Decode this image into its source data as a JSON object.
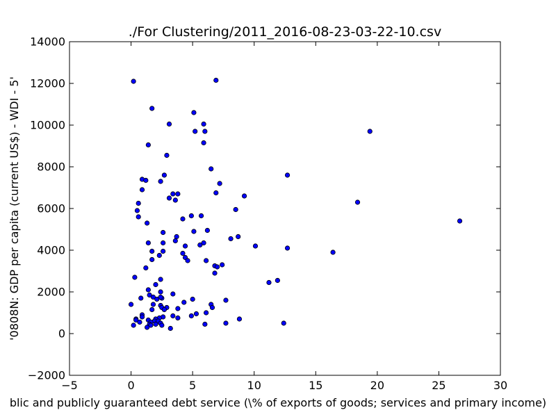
{
  "chart_data": {
    "type": "scatter",
    "title": "./For Clustering/2011_2016-08-23-03-22-10.csv",
    "xlabel": "blic and publicly guaranteed debt service  (\\% of exports of goods; services and primary income)",
    "ylabel": "'0808N: GDP per capita  (current US$) - WDI - 5'",
    "xlim": [
      -5,
      30
    ],
    "ylim": [
      -2000,
      14000
    ],
    "xticks": [
      -5,
      0,
      5,
      10,
      15,
      20,
      25,
      30
    ],
    "yticks": [
      -2000,
      0,
      2000,
      4000,
      6000,
      8000,
      10000,
      12000,
      14000
    ],
    "xtick_labels": [
      "−5",
      "0",
      "5",
      "10",
      "15",
      "20",
      "25",
      "30"
    ],
    "ytick_labels": [
      "−2000",
      "0",
      "2000",
      "4000",
      "6000",
      "8000",
      "10000",
      "12000",
      "14000"
    ],
    "grid": false,
    "marker_color": "#0000ff",
    "marker_edge": "#000000",
    "points": [
      {
        "x": 0.2,
        "y": 12100
      },
      {
        "x": 6.9,
        "y": 12150
      },
      {
        "x": 1.7,
        "y": 10800
      },
      {
        "x": 5.1,
        "y": 10600
      },
      {
        "x": 3.1,
        "y": 10050
      },
      {
        "x": 5.9,
        "y": 10050
      },
      {
        "x": 5.2,
        "y": 9700
      },
      {
        "x": 6.0,
        "y": 9700
      },
      {
        "x": 19.4,
        "y": 9700
      },
      {
        "x": 5.9,
        "y": 9150
      },
      {
        "x": 1.4,
        "y": 9050
      },
      {
        "x": 2.9,
        "y": 8550
      },
      {
        "x": 6.5,
        "y": 7900
      },
      {
        "x": 12.7,
        "y": 7600
      },
      {
        "x": 2.7,
        "y": 7600
      },
      {
        "x": 0.9,
        "y": 7400
      },
      {
        "x": 1.2,
        "y": 7350
      },
      {
        "x": 2.4,
        "y": 7300
      },
      {
        "x": 7.2,
        "y": 7200
      },
      {
        "x": 0.9,
        "y": 6900
      },
      {
        "x": 3.4,
        "y": 6700
      },
      {
        "x": 3.8,
        "y": 6700
      },
      {
        "x": 6.9,
        "y": 6750
      },
      {
        "x": 9.2,
        "y": 6600
      },
      {
        "x": 3.1,
        "y": 6500
      },
      {
        "x": 3.6,
        "y": 6400
      },
      {
        "x": 18.4,
        "y": 6300
      },
      {
        "x": 0.6,
        "y": 6250
      },
      {
        "x": 0.5,
        "y": 5900
      },
      {
        "x": 8.5,
        "y": 5950
      },
      {
        "x": 0.6,
        "y": 5600
      },
      {
        "x": 4.9,
        "y": 5650
      },
      {
        "x": 5.7,
        "y": 5650
      },
      {
        "x": 4.2,
        "y": 5500
      },
      {
        "x": 26.7,
        "y": 5400
      },
      {
        "x": 1.3,
        "y": 5300
      },
      {
        "x": 5.1,
        "y": 4900
      },
      {
        "x": 6.2,
        "y": 4950
      },
      {
        "x": 2.6,
        "y": 4850
      },
      {
        "x": 3.7,
        "y": 4650
      },
      {
        "x": 8.7,
        "y": 4650
      },
      {
        "x": 8.1,
        "y": 4550
      },
      {
        "x": 3.6,
        "y": 4450
      },
      {
        "x": 1.4,
        "y": 4350
      },
      {
        "x": 2.6,
        "y": 4350
      },
      {
        "x": 5.9,
        "y": 4350
      },
      {
        "x": 5.6,
        "y": 4250
      },
      {
        "x": 4.4,
        "y": 4200
      },
      {
        "x": 10.1,
        "y": 4200
      },
      {
        "x": 12.7,
        "y": 4100
      },
      {
        "x": 1.7,
        "y": 3950
      },
      {
        "x": 2.6,
        "y": 3950
      },
      {
        "x": 16.4,
        "y": 3900
      },
      {
        "x": 4.2,
        "y": 3850
      },
      {
        "x": 2.3,
        "y": 3750
      },
      {
        "x": 4.4,
        "y": 3650
      },
      {
        "x": 1.7,
        "y": 3550
      },
      {
        "x": 4.6,
        "y": 3500
      },
      {
        "x": 6.1,
        "y": 3500
      },
      {
        "x": 7.4,
        "y": 3300
      },
      {
        "x": 6.8,
        "y": 3250
      },
      {
        "x": 7.0,
        "y": 3200
      },
      {
        "x": 1.2,
        "y": 3150
      },
      {
        "x": 6.8,
        "y": 2900
      },
      {
        "x": 0.3,
        "y": 2700
      },
      {
        "x": 2.4,
        "y": 2600
      },
      {
        "x": 11.9,
        "y": 2550
      },
      {
        "x": 11.2,
        "y": 2450
      },
      {
        "x": 2.0,
        "y": 2350
      },
      {
        "x": 1.4,
        "y": 2100
      },
      {
        "x": 2.4,
        "y": 2000
      },
      {
        "x": 3.4,
        "y": 1900
      },
      {
        "x": 1.5,
        "y": 1850
      },
      {
        "x": 1.8,
        "y": 1750
      },
      {
        "x": 0.8,
        "y": 1700
      },
      {
        "x": 2.1,
        "y": 1650
      },
      {
        "x": 2.5,
        "y": 1700
      },
      {
        "x": 2.4,
        "y": 1750
      },
      {
        "x": 5.0,
        "y": 1650
      },
      {
        "x": 7.7,
        "y": 1600
      },
      {
        "x": 4.3,
        "y": 1500
      },
      {
        "x": 1.8,
        "y": 1400
      },
      {
        "x": 0.0,
        "y": 1400
      },
      {
        "x": 6.5,
        "y": 1400
      },
      {
        "x": 2.4,
        "y": 1350
      },
      {
        "x": 2.5,
        "y": 1250
      },
      {
        "x": 2.9,
        "y": 1250
      },
      {
        "x": 6.6,
        "y": 1250
      },
      {
        "x": 3.8,
        "y": 1200
      },
      {
        "x": 1.7,
        "y": 1150
      },
      {
        "x": 2.7,
        "y": 1150
      },
      {
        "x": 6.1,
        "y": 1000
      },
      {
        "x": 5.3,
        "y": 950
      },
      {
        "x": 0.9,
        "y": 900
      },
      {
        "x": 4.9,
        "y": 850
      },
      {
        "x": 3.4,
        "y": 850
      },
      {
        "x": 0.9,
        "y": 800
      },
      {
        "x": 2.6,
        "y": 800
      },
      {
        "x": 2.3,
        "y": 750
      },
      {
        "x": 3.8,
        "y": 750
      },
      {
        "x": 0.4,
        "y": 700
      },
      {
        "x": 2.0,
        "y": 700
      },
      {
        "x": 8.8,
        "y": 700
      },
      {
        "x": 1.4,
        "y": 650
      },
      {
        "x": 0.4,
        "y": 650
      },
      {
        "x": 1.9,
        "y": 600
      },
      {
        "x": 2.2,
        "y": 600
      },
      {
        "x": 0.7,
        "y": 550
      },
      {
        "x": 1.6,
        "y": 550
      },
      {
        "x": 2.4,
        "y": 500
      },
      {
        "x": 6.0,
        "y": 450
      },
      {
        "x": 7.7,
        "y": 500
      },
      {
        "x": 12.4,
        "y": 500
      },
      {
        "x": 1.5,
        "y": 450
      },
      {
        "x": 2.0,
        "y": 450
      },
      {
        "x": 1.6,
        "y": 400
      },
      {
        "x": 2.5,
        "y": 400
      },
      {
        "x": 0.2,
        "y": 400
      },
      {
        "x": 1.3,
        "y": 300
      },
      {
        "x": 3.2,
        "y": 250
      }
    ]
  }
}
